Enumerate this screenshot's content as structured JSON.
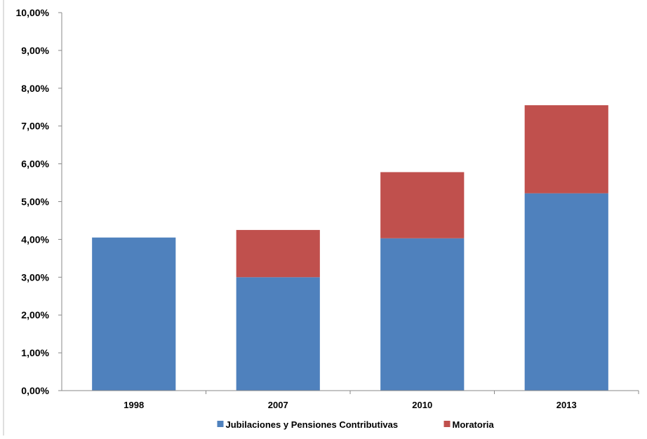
{
  "chart_data": {
    "type": "bar",
    "stacked": true,
    "categories": [
      "1998",
      "2007",
      "2010",
      "2013"
    ],
    "series": [
      {
        "name": "Jubilaciones y Pensiones Contributivas",
        "values": [
          4.05,
          3.0,
          4.03,
          5.22
        ],
        "color": "#4F81BD"
      },
      {
        "name": "Moratoria",
        "values": [
          0.0,
          1.25,
          1.75,
          2.33
        ],
        "color": "#C0504D"
      }
    ],
    "y_ticks": [
      "0,00%",
      "1,00%",
      "2,00%",
      "3,00%",
      "4,00%",
      "5,00%",
      "6,00%",
      "7,00%",
      "8,00%",
      "9,00%",
      "10,00%"
    ],
    "ylim": [
      0,
      10
    ],
    "grid": false,
    "legend_position": "bottom"
  }
}
